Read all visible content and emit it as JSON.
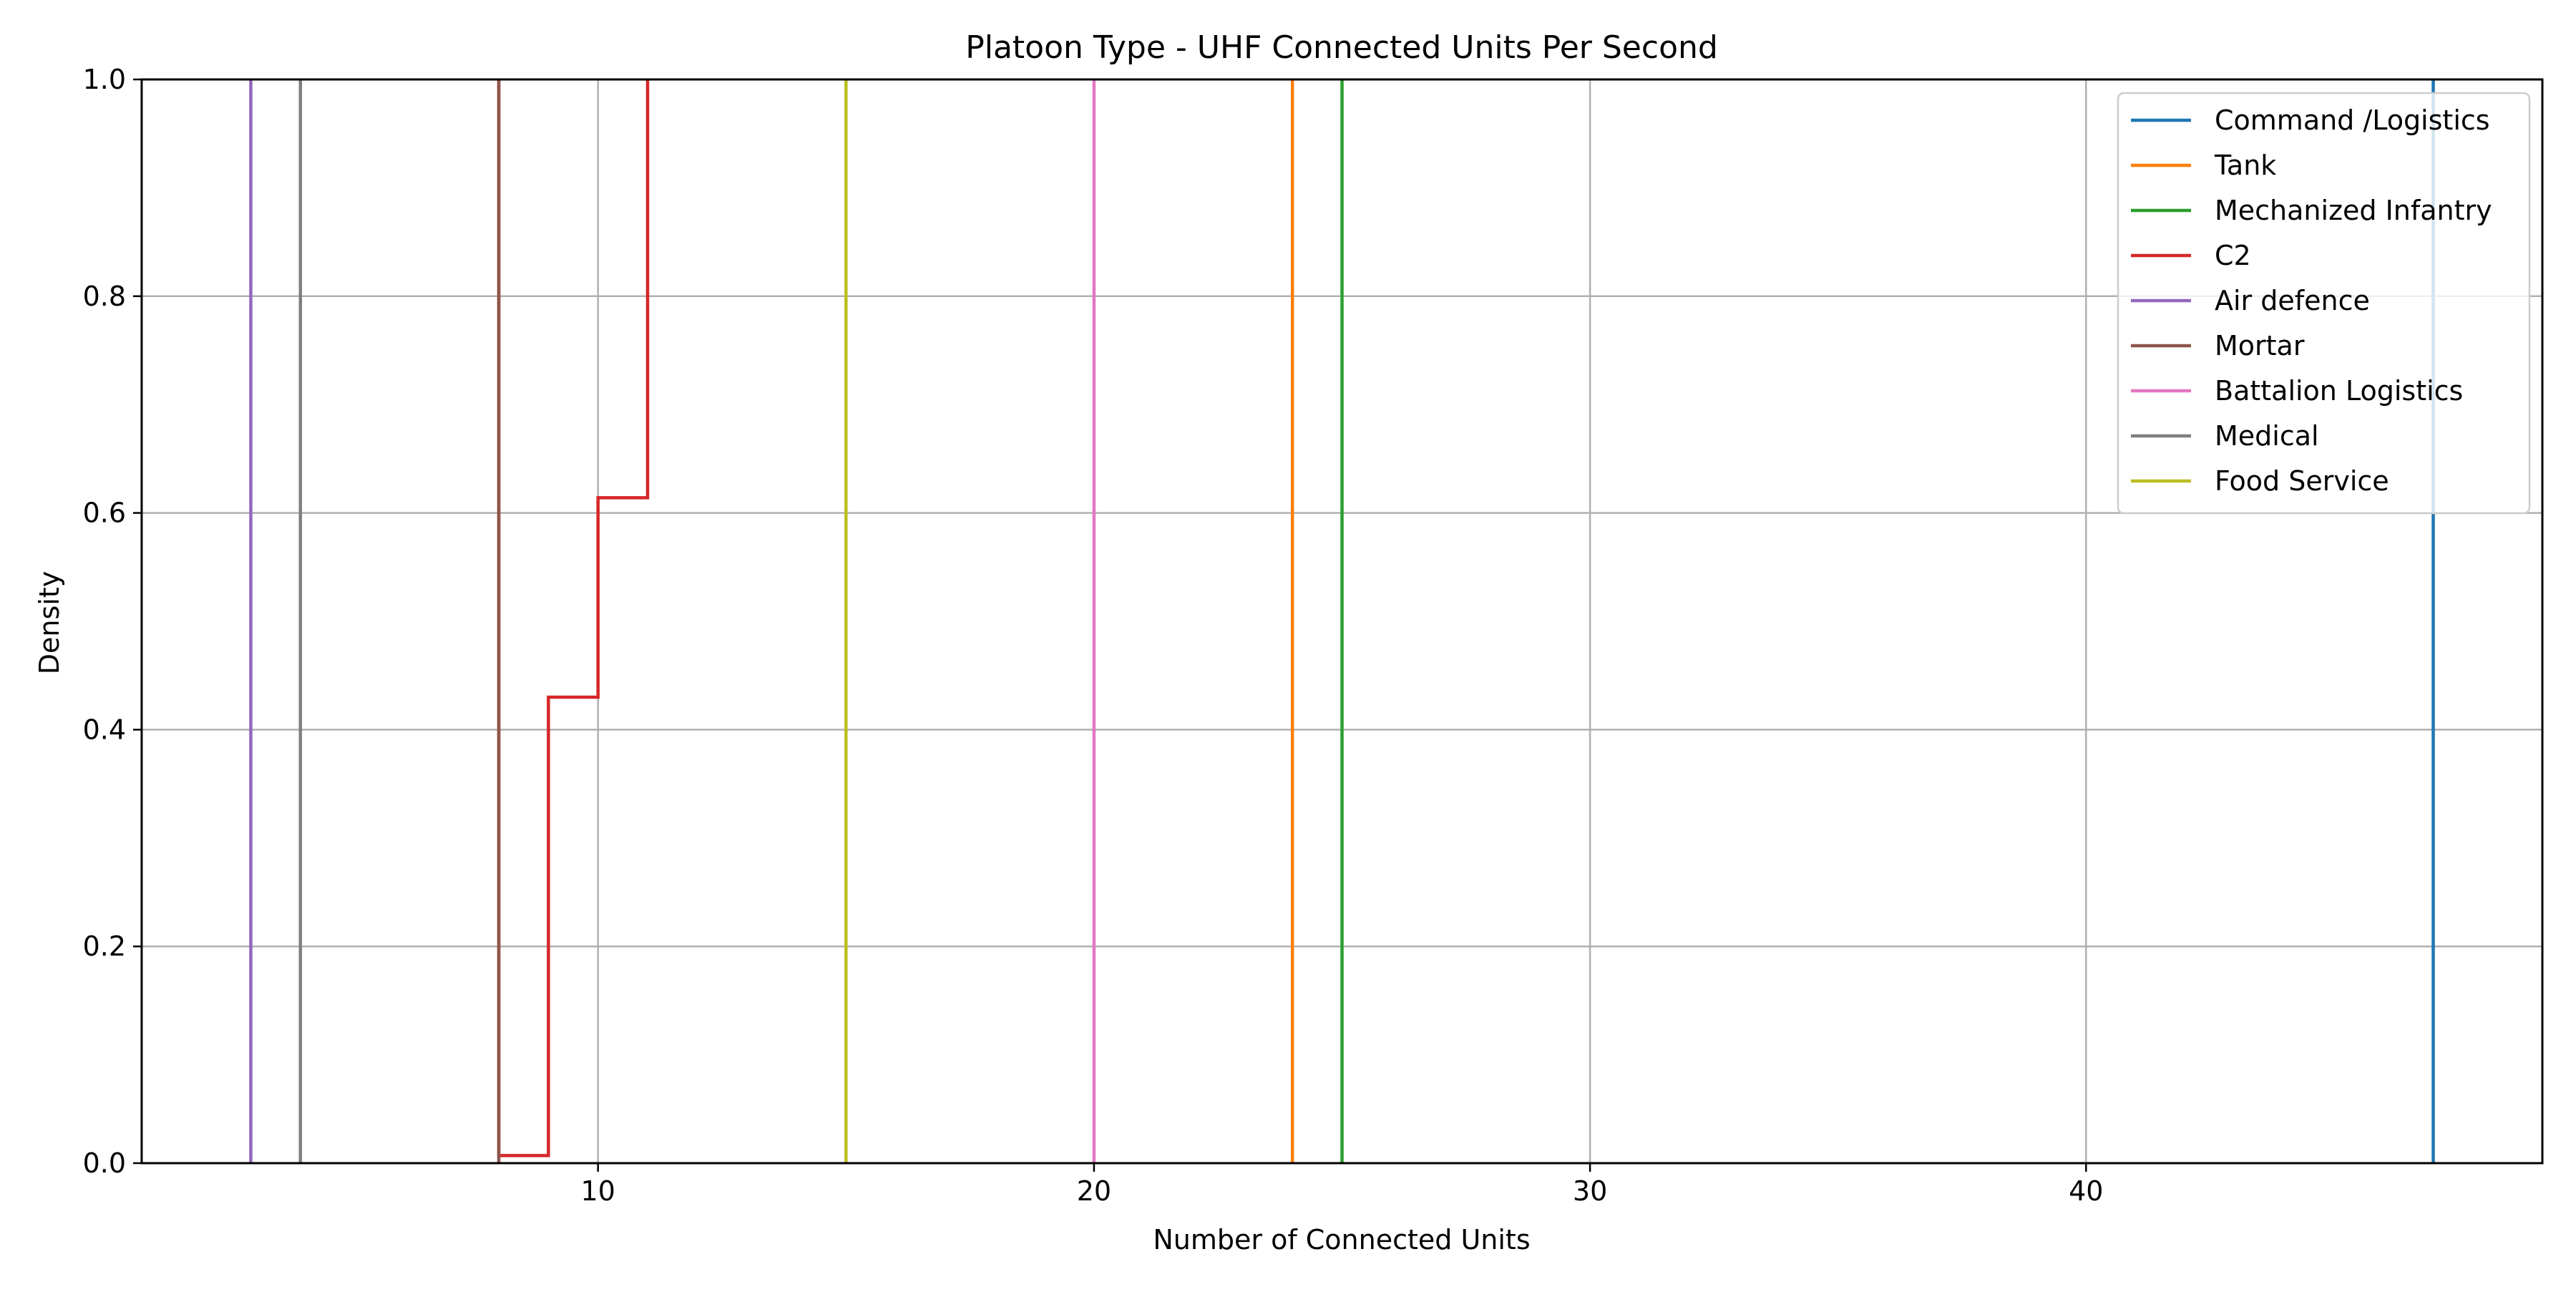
{
  "chart_data": {
    "type": "line",
    "title": "Platoon Type - UHF Connected Units Per Second",
    "xlabel": "Number of Connected Units",
    "ylabel": "Density",
    "xlim": [
      0.8,
      49.2
    ],
    "ylim": [
      0,
      1.0
    ],
    "x_ticks": [
      10,
      20,
      30,
      40
    ],
    "y_ticks": [
      0.0,
      0.2,
      0.4,
      0.6,
      0.8,
      1.0
    ],
    "grid": true,
    "legend_position": "upper right",
    "series": [
      {
        "name": "Command /Logistics",
        "color": "#1f77b4",
        "x": [
          47,
          47
        ],
        "y": [
          0,
          1
        ]
      },
      {
        "name": "Tank",
        "color": "#ff7f0e",
        "x": [
          24,
          24
        ],
        "y": [
          0,
          1
        ]
      },
      {
        "name": "Mechanized Infantry",
        "color": "#2ca02c",
        "x": [
          25,
          25
        ],
        "y": [
          0,
          1
        ]
      },
      {
        "name": "C2",
        "color": "#d62728",
        "x": [
          8,
          8,
          9,
          9,
          10,
          10,
          11,
          11
        ],
        "y": [
          1.0,
          0.007,
          0.007,
          0.43,
          0.43,
          0.614,
          0.614,
          1.0
        ]
      },
      {
        "name": "Air defence",
        "color": "#9467bd",
        "x": [
          3,
          3
        ],
        "y": [
          0,
          1
        ]
      },
      {
        "name": "Mortar",
        "color": "#8c564b",
        "x": [
          8,
          8
        ],
        "y": [
          0,
          1
        ]
      },
      {
        "name": "Battalion Logistics",
        "color": "#e377c2",
        "x": [
          20,
          20
        ],
        "y": [
          0,
          1
        ]
      },
      {
        "name": "Medical",
        "color": "#7f7f7f",
        "x": [
          4,
          4
        ],
        "y": [
          0,
          1
        ]
      },
      {
        "name": "Food Service",
        "color": "#bcbd22",
        "x": [
          15,
          15
        ],
        "y": [
          0,
          1
        ]
      }
    ]
  }
}
